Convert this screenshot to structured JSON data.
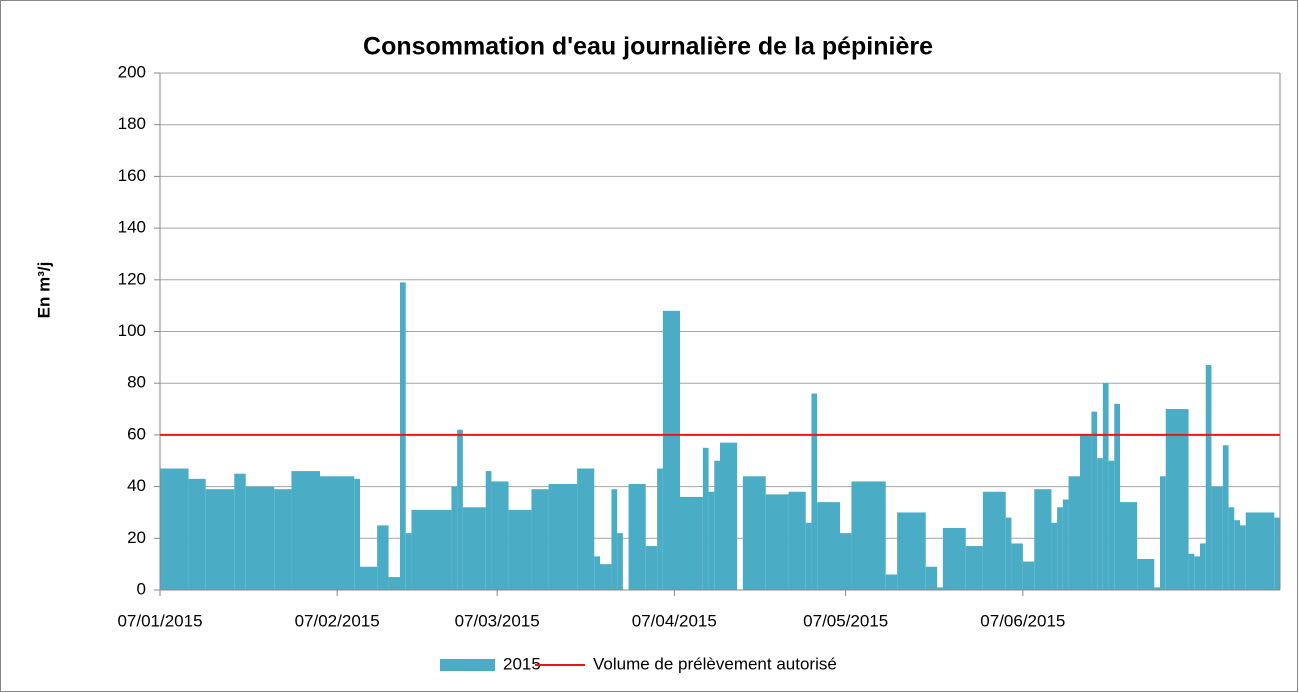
{
  "chart_data": {
    "type": "bar",
    "title": "Consommation d'eau journalière de la pépinière",
    "y_label": "En m³/j",
    "xlim": [
      "07/01/2015",
      "22/07/2015"
    ],
    "xticks": [
      "07/01/2015",
      "07/02/2015",
      "07/03/2015",
      "07/04/2015",
      "07/05/2015",
      "07/06/2015"
    ],
    "ylim": [
      0,
      200
    ],
    "yticks": [
      0,
      20,
      40,
      60,
      80,
      100,
      120,
      140,
      160,
      180,
      200
    ],
    "grid": true,
    "series": [
      {
        "name": "2015",
        "color": "#4bacc6",
        "x": [
          "07/01/2015",
          "12/01/2015",
          "15/01/2015",
          "20/01/2015",
          "22/01/2015",
          "27/01/2015",
          "30/01/2015",
          "04/02/2015",
          "10/02/2015",
          "11/02/2015",
          "14/02/2015",
          "16/02/2015",
          "18/02/2015",
          "19/02/2015",
          "20/02/2015",
          "27/02/2015",
          "28/02/2015",
          "01/03/2015",
          "05/03/2015",
          "06/03/2015",
          "09/03/2015",
          "13/03/2015",
          "16/03/2015",
          "21/03/2015",
          "24/03/2015",
          "25/03/2015",
          "27/03/2015",
          "28/03/2015",
          "29/03/2015",
          "30/03/2015",
          "02/04/2015",
          "04/04/2015",
          "05/04/2015",
          "08/04/2015",
          "12/04/2015",
          "13/04/2015",
          "14/04/2015",
          "15/04/2015",
          "18/04/2015",
          "19/04/2015",
          "23/04/2015",
          "27/04/2015",
          "30/04/2015",
          "01/05/2015",
          "02/05/2015",
          "06/05/2015",
          "08/05/2015",
          "14/05/2015",
          "16/05/2015",
          "21/05/2015",
          "23/05/2015",
          "24/05/2015",
          "28/05/2015",
          "31/05/2015",
          "04/06/2015",
          "05/06/2015",
          "07/06/2015",
          "09/06/2015",
          "12/06/2015",
          "13/06/2015",
          "14/06/2015",
          "15/06/2015",
          "17/06/2015",
          "19/06/2015",
          "20/06/2015",
          "21/06/2015",
          "22/06/2015",
          "23/06/2015",
          "24/06/2015",
          "27/06/2015",
          "30/06/2015",
          "01/07/2015",
          "02/07/2015",
          "06/07/2015",
          "07/07/2015",
          "08/07/2015",
          "09/07/2015",
          "10/07/2015",
          "12/07/2015",
          "13/07/2015",
          "14/07/2015",
          "15/07/2015",
          "16/07/2015",
          "21/07/2015"
        ],
        "values": [
          47,
          43,
          39,
          45,
          40,
          39,
          46,
          44,
          43,
          9,
          25,
          5,
          119,
          22,
          31,
          40,
          62,
          32,
          46,
          42,
          31,
          39,
          41,
          47,
          13,
          10,
          39,
          22,
          0,
          41,
          17,
          47,
          108,
          36,
          55,
          38,
          50,
          57,
          0,
          44,
          37,
          38,
          26,
          76,
          34,
          22,
          42,
          6,
          30,
          9,
          1,
          24,
          17,
          38,
          28,
          18,
          11,
          39,
          26,
          32,
          35,
          44,
          60,
          69,
          51,
          80,
          50,
          72,
          34,
          12,
          1,
          44,
          70,
          14,
          13,
          18,
          87,
          40,
          56,
          32,
          27,
          25,
          30,
          28
        ]
      }
    ],
    "reference_line": {
      "name": "Volume de prélèvement autorisé",
      "value": 60,
      "color": "#e8161b"
    }
  }
}
